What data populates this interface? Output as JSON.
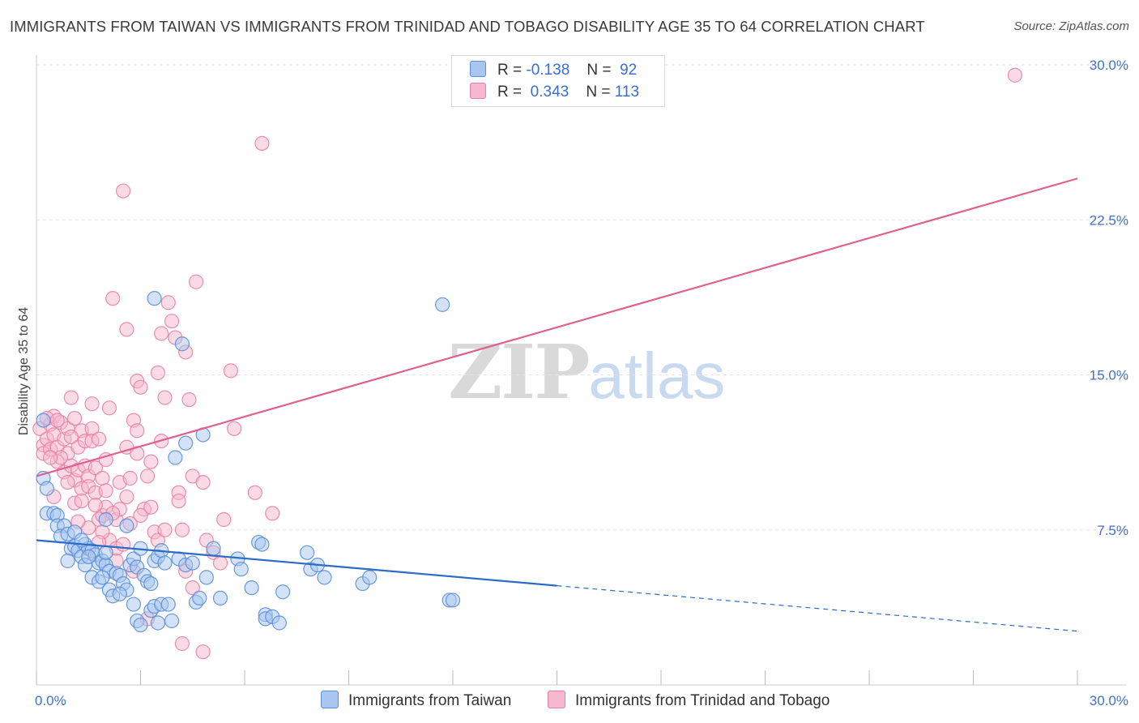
{
  "header": {
    "title": "IMMIGRANTS FROM TAIWAN VS IMMIGRANTS FROM TRINIDAD AND TOBAGO DISABILITY AGE 35 TO 64 CORRELATION CHART",
    "source": "Source: ZipAtlas.com"
  },
  "watermark": {
    "zip": "ZIP",
    "atlas": "atlas"
  },
  "colors": {
    "taiwan_fill": "#a8c6f0",
    "taiwan_stroke": "#5b8fd6",
    "taiwan_line": "#2b6cc9",
    "trinidad_fill": "#f5b8cc",
    "trinidad_stroke": "#e882a5",
    "trinidad_line": "#e0608e",
    "tick_text": "#4472c4",
    "grid": "#e6e6e6"
  },
  "legend_top": {
    "rows": [
      {
        "r_label": "R =",
        "r_value": "-0.138",
        "n_label": "N =",
        "n_value": "92"
      },
      {
        "r_label": "R =",
        "r_value": "0.343",
        "n_label": "N =",
        "n_value": "113"
      }
    ]
  },
  "chart_data": {
    "type": "scatter",
    "title": "IMMIGRANTS FROM TAIWAN VS IMMIGRANTS FROM TRINIDAD AND TOBAGO DISABILITY AGE 35 TO 64 CORRELATION CHART",
    "xlabel": "",
    "ylabel": "Disability Age 35 to 64",
    "xlim": [
      0,
      30
    ],
    "ylim": [
      0,
      30
    ],
    "x_tick_labels": [
      "0.0%",
      "30.0%"
    ],
    "y_tick_values": [
      7.5,
      15.0,
      22.5,
      30.0
    ],
    "y_tick_labels": [
      "7.5%",
      "15.0%",
      "22.5%",
      "30.0%"
    ],
    "grid": true,
    "legend_position": "bottom",
    "series": [
      {
        "name": "Immigrants from Taiwan",
        "R": -0.138,
        "N": 92,
        "trend": {
          "x0": 0.0,
          "y0": 7.0,
          "x1": 15.0,
          "y1": 4.8,
          "dash_to_x": 30.0,
          "dash_to_y": 2.6
        },
        "points": [
          [
            0.2,
            12.8
          ],
          [
            0.2,
            10.0
          ],
          [
            0.3,
            9.5
          ],
          [
            0.3,
            8.3
          ],
          [
            0.5,
            8.3
          ],
          [
            0.6,
            8.2
          ],
          [
            0.6,
            7.7
          ],
          [
            0.8,
            7.7
          ],
          [
            0.7,
            7.2
          ],
          [
            0.9,
            7.3
          ],
          [
            1.0,
            6.6
          ],
          [
            1.1,
            6.7
          ],
          [
            1.2,
            6.5
          ],
          [
            1.3,
            6.2
          ],
          [
            1.4,
            6.8
          ],
          [
            1.5,
            6.6
          ],
          [
            1.6,
            6.5
          ],
          [
            1.7,
            6.3
          ],
          [
            1.8,
            5.9
          ],
          [
            1.9,
            6.0
          ],
          [
            2.0,
            5.8
          ],
          [
            1.6,
            5.2
          ],
          [
            1.8,
            5.0
          ],
          [
            2.1,
            5.5
          ],
          [
            2.3,
            5.4
          ],
          [
            2.4,
            5.3
          ],
          [
            2.5,
            4.9
          ],
          [
            2.1,
            4.6
          ],
          [
            2.2,
            4.3
          ],
          [
            2.6,
            4.6
          ],
          [
            2.7,
            5.8
          ],
          [
            2.8,
            6.1
          ],
          [
            2.9,
            5.7
          ],
          [
            3.1,
            5.3
          ],
          [
            3.2,
            5.0
          ],
          [
            3.3,
            4.9
          ],
          [
            3.4,
            6.0
          ],
          [
            3.5,
            6.2
          ],
          [
            3.6,
            6.5
          ],
          [
            3.7,
            5.9
          ],
          [
            2.8,
            3.9
          ],
          [
            2.9,
            3.1
          ],
          [
            3.0,
            2.9
          ],
          [
            3.3,
            3.6
          ],
          [
            3.4,
            3.8
          ],
          [
            3.5,
            3.0
          ],
          [
            3.6,
            3.9
          ],
          [
            3.8,
            3.9
          ],
          [
            3.9,
            3.1
          ],
          [
            4.1,
            6.1
          ],
          [
            4.3,
            5.8
          ],
          [
            4.5,
            5.9
          ],
          [
            4.6,
            4.0
          ],
          [
            4.7,
            4.2
          ],
          [
            4.9,
            5.2
          ],
          [
            5.1,
            6.6
          ],
          [
            5.3,
            4.2
          ],
          [
            5.8,
            6.1
          ],
          [
            5.9,
            5.6
          ],
          [
            6.2,
            4.7
          ],
          [
            6.4,
            6.9
          ],
          [
            6.5,
            6.8
          ],
          [
            6.6,
            3.4
          ],
          [
            6.6,
            3.2
          ],
          [
            6.8,
            3.3
          ],
          [
            7.0,
            3.0
          ],
          [
            7.1,
            4.5
          ],
          [
            7.8,
            6.4
          ],
          [
            7.9,
            5.6
          ],
          [
            8.1,
            5.8
          ],
          [
            8.3,
            5.2
          ],
          [
            9.4,
            4.9
          ],
          [
            9.6,
            5.2
          ],
          [
            11.9,
            4.1
          ],
          [
            12.0,
            4.1
          ],
          [
            11.7,
            18.4
          ],
          [
            3.4,
            18.7
          ],
          [
            4.2,
            16.5
          ],
          [
            4.3,
            11.7
          ],
          [
            4.8,
            12.1
          ],
          [
            4.0,
            11.0
          ],
          [
            1.4,
            5.8
          ],
          [
            1.9,
            5.2
          ],
          [
            2.4,
            4.4
          ],
          [
            1.1,
            7.4
          ],
          [
            1.3,
            7.0
          ],
          [
            0.9,
            6.0
          ],
          [
            2.0,
            6.4
          ],
          [
            3.0,
            6.6
          ],
          [
            1.5,
            6.2
          ],
          [
            2.6,
            7.7
          ],
          [
            2.0,
            8.0
          ]
        ]
      },
      {
        "name": "Immigrants from Trinidad and Tobago",
        "R": 0.343,
        "N": 113,
        "trend": {
          "x0": 0.0,
          "y0": 10.1,
          "x1": 30.0,
          "y1": 24.5
        },
        "points": [
          [
            0.1,
            12.4
          ],
          [
            0.2,
            11.6
          ],
          [
            0.2,
            11.2
          ],
          [
            0.3,
            11.9
          ],
          [
            0.4,
            12.6
          ],
          [
            0.4,
            11.4
          ],
          [
            0.5,
            13.0
          ],
          [
            0.5,
            12.1
          ],
          [
            0.6,
            11.5
          ],
          [
            0.6,
            10.8
          ],
          [
            0.7,
            12.7
          ],
          [
            0.8,
            11.9
          ],
          [
            0.8,
            10.3
          ],
          [
            0.9,
            12.4
          ],
          [
            0.9,
            11.2
          ],
          [
            1.0,
            13.9
          ],
          [
            1.0,
            10.6
          ],
          [
            1.1,
            12.9
          ],
          [
            1.1,
            9.9
          ],
          [
            1.2,
            11.5
          ],
          [
            1.2,
            10.4
          ],
          [
            1.3,
            12.3
          ],
          [
            1.3,
            9.5
          ],
          [
            1.4,
            11.8
          ],
          [
            1.4,
            10.6
          ],
          [
            1.5,
            10.1
          ],
          [
            1.5,
            9.6
          ],
          [
            1.6,
            12.4
          ],
          [
            1.6,
            11.8
          ],
          [
            1.7,
            10.5
          ],
          [
            1.7,
            9.3
          ],
          [
            1.8,
            11.9
          ],
          [
            1.8,
            8.0
          ],
          [
            1.9,
            10.0
          ],
          [
            1.9,
            8.2
          ],
          [
            2.0,
            9.4
          ],
          [
            2.0,
            8.6
          ],
          [
            2.1,
            13.4
          ],
          [
            2.1,
            7.0
          ],
          [
            2.2,
            18.7
          ],
          [
            2.3,
            8.0
          ],
          [
            2.3,
            6.6
          ],
          [
            2.4,
            8.5
          ],
          [
            2.5,
            23.9
          ],
          [
            2.6,
            17.2
          ],
          [
            2.6,
            11.5
          ],
          [
            2.7,
            7.8
          ],
          [
            2.8,
            12.8
          ],
          [
            2.9,
            14.7
          ],
          [
            2.9,
            11.2
          ],
          [
            3.0,
            14.4
          ],
          [
            3.1,
            8.5
          ],
          [
            3.2,
            10.1
          ],
          [
            3.3,
            8.6
          ],
          [
            3.4,
            7.4
          ],
          [
            3.5,
            7.0
          ],
          [
            3.5,
            15.1
          ],
          [
            3.6,
            11.8
          ],
          [
            3.6,
            17.0
          ],
          [
            3.7,
            13.9
          ],
          [
            3.8,
            18.5
          ],
          [
            3.9,
            17.6
          ],
          [
            4.0,
            16.8
          ],
          [
            4.1,
            9.3
          ],
          [
            4.1,
            8.9
          ],
          [
            4.2,
            7.5
          ],
          [
            4.3,
            16.1
          ],
          [
            4.4,
            13.8
          ],
          [
            4.5,
            10.1
          ],
          [
            4.5,
            4.7
          ],
          [
            4.6,
            19.5
          ],
          [
            4.8,
            9.8
          ],
          [
            4.9,
            7.0
          ],
          [
            5.1,
            6.4
          ],
          [
            5.3,
            5.9
          ],
          [
            5.4,
            8.0
          ],
          [
            5.6,
            15.2
          ],
          [
            5.7,
            12.4
          ],
          [
            6.3,
            9.3
          ],
          [
            6.5,
            26.2
          ],
          [
            6.8,
            8.3
          ],
          [
            4.2,
            2.0
          ],
          [
            4.8,
            1.6
          ],
          [
            3.2,
            3.2
          ],
          [
            2.8,
            5.5
          ],
          [
            2.3,
            6.0
          ],
          [
            1.5,
            7.6
          ],
          [
            1.9,
            7.4
          ],
          [
            2.2,
            8.3
          ],
          [
            1.1,
            8.8
          ],
          [
            0.5,
            9.1
          ],
          [
            1.7,
            8.7
          ],
          [
            2.6,
            9.1
          ],
          [
            3.0,
            8.2
          ],
          [
            4.3,
            5.5
          ],
          [
            28.2,
            29.5
          ],
          [
            0.3,
            12.9
          ],
          [
            0.7,
            11.0
          ],
          [
            1.0,
            12.0
          ],
          [
            1.3,
            8.9
          ],
          [
            2.0,
            10.9
          ],
          [
            2.4,
            9.8
          ],
          [
            3.3,
            10.8
          ],
          [
            1.8,
            6.9
          ],
          [
            2.5,
            6.8
          ],
          [
            0.9,
            9.8
          ],
          [
            1.6,
            13.6
          ],
          [
            2.7,
            10.0
          ],
          [
            3.7,
            7.5
          ],
          [
            0.4,
            11.0
          ],
          [
            1.2,
            7.9
          ],
          [
            2.9,
            12.3
          ],
          [
            0.6,
            12.8
          ]
        ]
      }
    ]
  }
}
